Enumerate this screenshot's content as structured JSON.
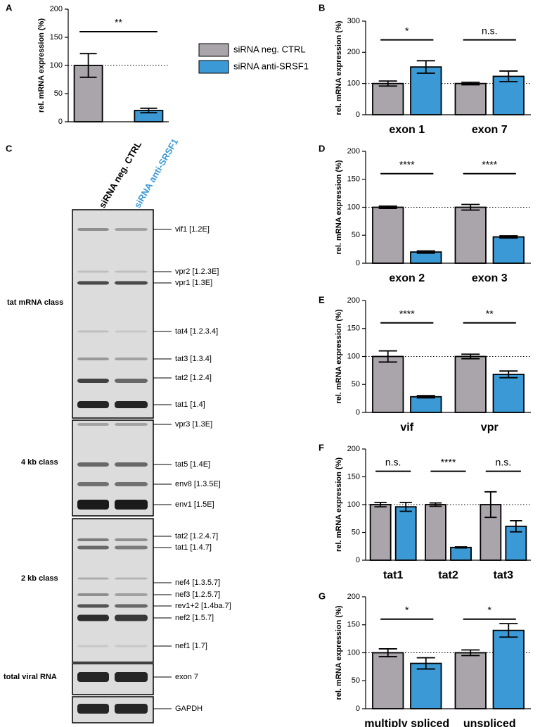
{
  "chart_data": [
    {
      "type": "bar",
      "panel": "A",
      "ylabel": "rel. mRNA expression (%)",
      "ylim": [
        0,
        200
      ],
      "yticks": [
        0,
        50,
        100,
        150,
        200
      ],
      "reference_line": 100,
      "series": [
        {
          "name": "siRNA neg. CTRL",
          "color": "#aaa5aa",
          "values": [
            100
          ],
          "errors": [
            21
          ]
        },
        {
          "name": "siRNA anti-SRSF1",
          "color": "#3b9ad5",
          "values": [
            20
          ],
          "errors": [
            4
          ]
        }
      ],
      "annotations": [
        "**"
      ],
      "legend": true
    },
    {
      "type": "bar",
      "panel": "B",
      "ylabel": "rel. mRNA expression (%)",
      "ylim": [
        0,
        300
      ],
      "yticks": [
        0,
        100,
        200,
        300
      ],
      "reference_line": 100,
      "categories": [
        "exon 1",
        "exon 7"
      ],
      "series": [
        {
          "color": "#aaa5aa",
          "values": [
            100,
            100
          ],
          "errors": [
            8,
            4
          ]
        },
        {
          "color": "#3b9ad5",
          "values": [
            153,
            123
          ],
          "errors": [
            20,
            17
          ]
        }
      ],
      "annotations": [
        "*",
        "n.s."
      ]
    },
    {
      "type": "bar",
      "panel": "D",
      "ylabel": "rel. mRNA expression (%)",
      "ylim": [
        0,
        200
      ],
      "yticks": [
        0,
        50,
        100,
        150,
        200
      ],
      "reference_line": 100,
      "categories": [
        "exon 2",
        "exon 3"
      ],
      "series": [
        {
          "color": "#aaa5aa",
          "values": [
            100,
            100
          ],
          "errors": [
            2,
            5
          ]
        },
        {
          "color": "#3b9ad5",
          "values": [
            20,
            47
          ],
          "errors": [
            2,
            2
          ]
        }
      ],
      "annotations": [
        "****",
        "****"
      ]
    },
    {
      "type": "bar",
      "panel": "E",
      "ylabel": "rel. mRNA expression (%)",
      "ylim": [
        0,
        200
      ],
      "yticks": [
        0,
        50,
        100,
        150,
        200
      ],
      "reference_line": 100,
      "categories": [
        "vif",
        "vpr"
      ],
      "series": [
        {
          "color": "#aaa5aa",
          "values": [
            100,
            100
          ],
          "errors": [
            10,
            4
          ]
        },
        {
          "color": "#3b9ad5",
          "values": [
            28,
            68
          ],
          "errors": [
            2,
            6
          ]
        }
      ],
      "annotations": [
        "****",
        "**"
      ]
    },
    {
      "type": "bar",
      "panel": "F",
      "ylabel": "rel. mRNA expression (%)",
      "ylim": [
        0,
        200
      ],
      "yticks": [
        0,
        50,
        100,
        150,
        200
      ],
      "reference_line": 100,
      "categories": [
        "tat1",
        "tat2",
        "tat3"
      ],
      "series": [
        {
          "color": "#aaa5aa",
          "values": [
            100,
            100,
            100
          ],
          "errors": [
            4,
            3,
            23
          ]
        },
        {
          "color": "#3b9ad5",
          "values": [
            96,
            23,
            61
          ],
          "errors": [
            8,
            1,
            10
          ]
        }
      ],
      "annotations": [
        "n.s.",
        "****",
        "n.s."
      ]
    },
    {
      "type": "bar",
      "panel": "G",
      "ylabel": "rel. mRNA expression (%)",
      "ylim": [
        0,
        200
      ],
      "yticks": [
        0,
        50,
        100,
        150,
        200
      ],
      "reference_line": 100,
      "categories": [
        "multiply spliced",
        "unspliced"
      ],
      "series": [
        {
          "color": "#aaa5aa",
          "values": [
            100,
            100
          ],
          "errors": [
            7,
            5
          ]
        },
        {
          "color": "#3b9ad5",
          "values": [
            81,
            140
          ],
          "errors": [
            10,
            12
          ]
        }
      ],
      "annotations": [
        "*",
        "*"
      ]
    }
  ],
  "gel": {
    "panel": "C",
    "lanes": [
      "siRNA neg. CTRL",
      "siRNA anti-SRSF1"
    ],
    "classes": [
      "tat mRNA class",
      "4 kb class",
      "2 kb class",
      "total viral RNA"
    ],
    "bands": [
      "vif1 [1.2E]",
      "vpr2 [1.2.3E]",
      "vpr1 [1.3E]",
      "tat4 [1.2.3.4]",
      "tat3 [1.3.4]",
      "tat2 [1.2.4]",
      "tat1 [1.4]",
      "vpr3 [1.3E]",
      "tat5 [1.4E]",
      "env8 [1.3.5E]",
      "env1 [1.5E]",
      "tat2 [1.2.4.7]",
      "tat1 [1.4.7]",
      "nef4 [1.3.5.7]",
      "nef3 [1.2.5.7]",
      "rev1+2 [1.4ba.7]",
      "nef2 [1.5.7]",
      "nef1 [1.7]",
      "exon 7",
      "GAPDH"
    ]
  }
}
